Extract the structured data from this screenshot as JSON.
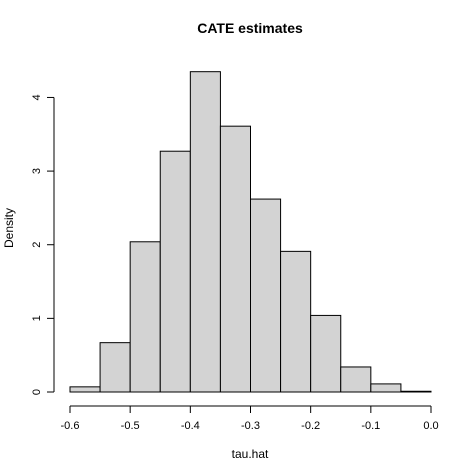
{
  "chart_data": {
    "type": "bar",
    "title": "CATE estimates",
    "xlabel": "tau.hat",
    "ylabel": "Density",
    "bins": [
      {
        "start": -0.6,
        "end": -0.55,
        "density": 0.07
      },
      {
        "start": -0.55,
        "end": -0.5,
        "density": 0.67
      },
      {
        "start": -0.5,
        "end": -0.45,
        "density": 2.04
      },
      {
        "start": -0.45,
        "end": -0.4,
        "density": 3.27
      },
      {
        "start": -0.4,
        "end": -0.35,
        "density": 4.35
      },
      {
        "start": -0.35,
        "end": -0.3,
        "density": 3.61
      },
      {
        "start": -0.3,
        "end": -0.25,
        "density": 2.62
      },
      {
        "start": -0.25,
        "end": -0.2,
        "density": 1.91
      },
      {
        "start": -0.2,
        "end": -0.15,
        "density": 1.04
      },
      {
        "start": -0.15,
        "end": -0.1,
        "density": 0.34
      },
      {
        "start": -0.1,
        "end": -0.05,
        "density": 0.11
      },
      {
        "start": -0.05,
        "end": 0.0,
        "density": 0.01
      }
    ],
    "xlim": [
      -0.6,
      0.0
    ],
    "ylim": [
      0,
      4.4
    ],
    "xticks": [
      -0.6,
      -0.5,
      -0.4,
      -0.3,
      -0.2,
      -0.1,
      0.0
    ],
    "xtick_labels": [
      "-0.6",
      "-0.5",
      "-0.4",
      "-0.3",
      "-0.2",
      "-0.1",
      "0.0"
    ],
    "yticks": [
      0,
      1,
      2,
      3,
      4
    ],
    "ytick_labels": [
      "0",
      "1",
      "2",
      "3",
      "4"
    ],
    "grid": false,
    "colors": {
      "bar_fill": "#d3d3d3",
      "bar_stroke": "#000000"
    }
  }
}
